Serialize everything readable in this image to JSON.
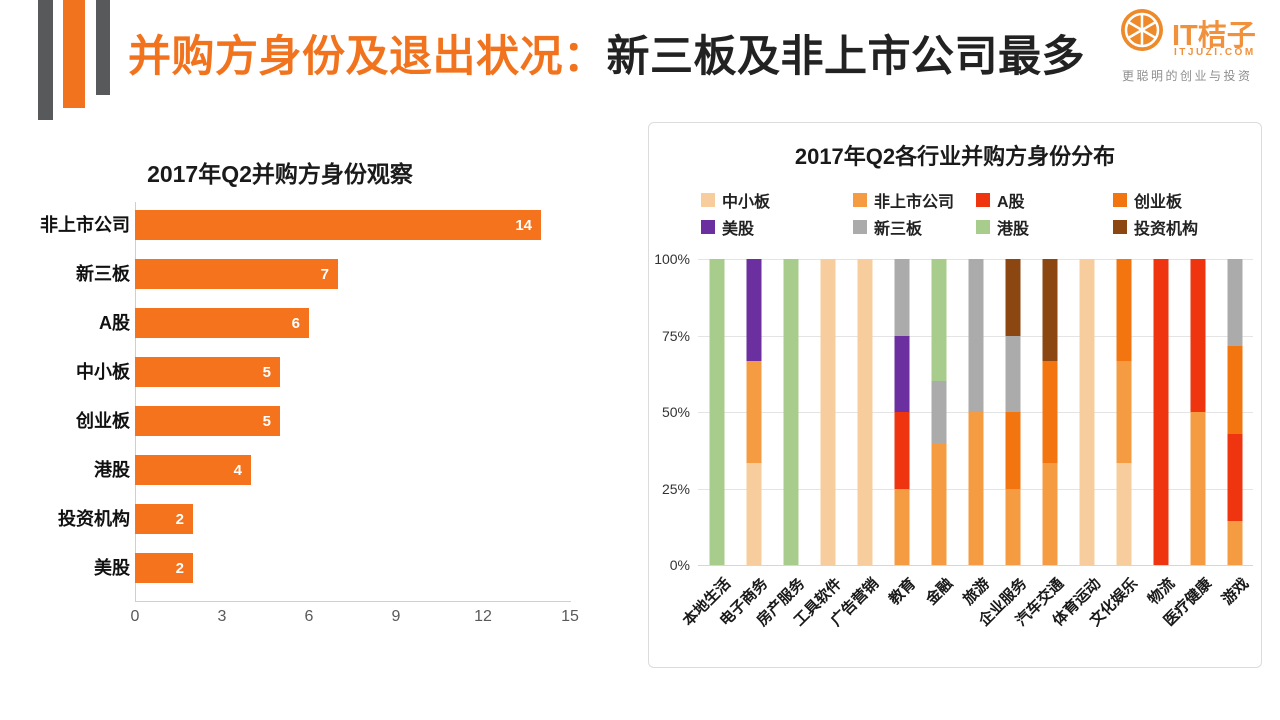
{
  "header": {
    "title_highlight": "并购方身份及退出状况：",
    "title_rest": "新三板及非上市公司最多",
    "accent_color": "#F2731D",
    "logo": {
      "name": "IT桔子",
      "domain": "ITJUZI.COM",
      "tagline": "更聪明的创业与投资",
      "color": "#F2913C"
    }
  },
  "chart_data": [
    {
      "type": "bar",
      "orientation": "horizontal",
      "title": "2017年Q2并购方身份观察",
      "categories": [
        "非上市公司",
        "新三板",
        "A股",
        "中小板",
        "创业板",
        "港股",
        "投资机构",
        "美股"
      ],
      "values": [
        14,
        7,
        6,
        5,
        5,
        4,
        2,
        2
      ],
      "xlim": [
        0,
        15
      ],
      "x_ticks": [
        0,
        3,
        6,
        9,
        12,
        15
      ],
      "bar_color": "#F4731C",
      "value_label_color": "#FFFFFF",
      "grid": false
    },
    {
      "type": "bar",
      "subtype": "stacked-100pct",
      "title": "2017年Q2各行业并购方身份分布",
      "legend_position": "top",
      "grid": true,
      "ylim": [
        0,
        100
      ],
      "y_ticks": [
        "100%",
        "75%",
        "50%",
        "25%",
        "0%"
      ],
      "series_colors": {
        "中小板": "#F7CD9E",
        "非上市公司": "#F59C42",
        "A股": "#EE3510",
        "创业板": "#F2750F",
        "美股": "#6B2F9F",
        "新三板": "#ABABAB",
        "港股": "#A8CC8B",
        "投资机构": "#8C4612"
      },
      "legend_order": [
        "中小板",
        "非上市公司",
        "A股",
        "创业板",
        "美股",
        "新三板",
        "港股",
        "投资机构"
      ],
      "categories": [
        "本地生活",
        "电子商务",
        "房产服务",
        "工具软件",
        "广告营销",
        "教育",
        "金融",
        "旅游",
        "企业服务",
        "汽车交通",
        "体育运动",
        "文化娱乐",
        "物流",
        "医疗健康",
        "游戏"
      ],
      "stacks_bottom_to_top": [
        [
          {
            "series": "港股",
            "pct": 100
          }
        ],
        [
          {
            "series": "中小板",
            "pct": 33.3
          },
          {
            "series": "非上市公司",
            "pct": 33.4
          },
          {
            "series": "美股",
            "pct": 33.3
          }
        ],
        [
          {
            "series": "港股",
            "pct": 100
          }
        ],
        [
          {
            "series": "中小板",
            "pct": 100
          }
        ],
        [
          {
            "series": "中小板",
            "pct": 100
          }
        ],
        [
          {
            "series": "非上市公司",
            "pct": 25
          },
          {
            "series": "A股",
            "pct": 25
          },
          {
            "series": "美股",
            "pct": 25
          },
          {
            "series": "新三板",
            "pct": 25
          }
        ],
        [
          {
            "series": "非上市公司",
            "pct": 40
          },
          {
            "series": "新三板",
            "pct": 20
          },
          {
            "series": "港股",
            "pct": 40
          }
        ],
        [
          {
            "series": "非上市公司",
            "pct": 50
          },
          {
            "series": "新三板",
            "pct": 50
          }
        ],
        [
          {
            "series": "非上市公司",
            "pct": 25
          },
          {
            "series": "创业板",
            "pct": 25
          },
          {
            "series": "新三板",
            "pct": 25
          },
          {
            "series": "投资机构",
            "pct": 25
          }
        ],
        [
          {
            "series": "非上市公司",
            "pct": 33.3
          },
          {
            "series": "创业板",
            "pct": 33.4
          },
          {
            "series": "投资机构",
            "pct": 33.3
          }
        ],
        [
          {
            "series": "中小板",
            "pct": 100
          }
        ],
        [
          {
            "series": "中小板",
            "pct": 33.3
          },
          {
            "series": "非上市公司",
            "pct": 33.3
          },
          {
            "series": "创业板",
            "pct": 33.4
          }
        ],
        [
          {
            "series": "A股",
            "pct": 100
          }
        ],
        [
          {
            "series": "非上市公司",
            "pct": 50
          },
          {
            "series": "A股",
            "pct": 50
          }
        ],
        [
          {
            "series": "非上市公司",
            "pct": 14.3
          },
          {
            "series": "A股",
            "pct": 28.6
          },
          {
            "series": "创业板",
            "pct": 28.6
          },
          {
            "series": "新三板",
            "pct": 28.5
          }
        ]
      ]
    }
  ]
}
